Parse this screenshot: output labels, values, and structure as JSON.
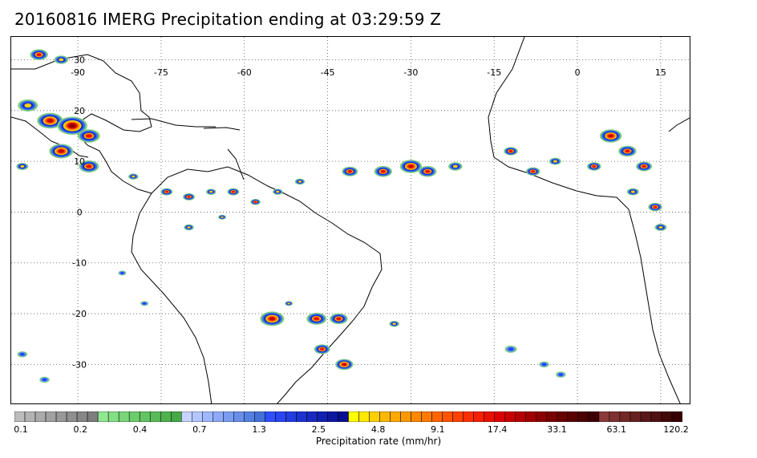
{
  "title": "20160816 IMERG Precipitation ending at 03:29:59 Z",
  "map": {
    "lon_labels": [
      "-90",
      "-75",
      "-60",
      "-45",
      "-30",
      "-15",
      "0",
      "15"
    ],
    "lat_labels": [
      "30",
      "20",
      "10",
      "0",
      "-10",
      "-20",
      "-30"
    ],
    "lon_values": [
      -90,
      -75,
      -60,
      -45,
      -30,
      -15,
      0,
      15
    ],
    "lat_values": [
      30,
      20,
      10,
      0,
      -10,
      -20,
      -30
    ],
    "extent": {
      "lon_min": -102,
      "lon_max": 20.5,
      "lat_min": -38,
      "lat_max": 34.5
    },
    "gridline_style": "dotted"
  },
  "colorbar": {
    "label": "Precipitation rate (mm/hr)",
    "tick_labels": [
      "0.1",
      "0.2",
      "0.4",
      "0.7",
      "1.3",
      "2.5",
      "4.8",
      "9.1",
      "17.4",
      "33.1",
      "63.1",
      "120.2"
    ],
    "colors": [
      "#bdbdbd",
      "#b3b3b3",
      "#aaaaaa",
      "#a1a1a1",
      "#989898",
      "#8f8f8f",
      "#868686",
      "#7e7e7e",
      "#90e890",
      "#84df84",
      "#78d678",
      "#6dcd6d",
      "#62c462",
      "#58bb58",
      "#4eb24e",
      "#45a945",
      "#c6d4ff",
      "#b3c6ff",
      "#a0b8ff",
      "#8daaf8",
      "#7a9cf0",
      "#688ee8",
      "#5680e0",
      "#4472d8",
      "#3050ff",
      "#2a46f0",
      "#243ce0",
      "#1e32d0",
      "#1828c0",
      "#1220b0",
      "#0c18a0",
      "#061090",
      "#ffff00",
      "#ffe800",
      "#ffd000",
      "#ffb800",
      "#ffa800",
      "#ff9800",
      "#ff8800",
      "#ff7800",
      "#ff6600",
      "#ff5400",
      "#ff4200",
      "#ff3000",
      "#f42000",
      "#e81000",
      "#dc0000",
      "#c80000",
      "#b40000",
      "#a00000",
      "#8c0000",
      "#7a0000",
      "#680000",
      "#5a0000",
      "#4c0000",
      "#3e0000",
      "#8b3a3a",
      "#7f3030",
      "#732828",
      "#672020",
      "#5b1818",
      "#4f1010",
      "#430808",
      "#370000"
    ]
  },
  "precip_cells": [
    {
      "lon": -97,
      "lat": 31,
      "intensity": 3,
      "size": 18
    },
    {
      "lon": -93,
      "lat": 30,
      "intensity": 2,
      "size": 14
    },
    {
      "lon": -99,
      "lat": 21,
      "intensity": 2,
      "size": 20
    },
    {
      "lon": -95,
      "lat": 18,
      "intensity": 4,
      "size": 26
    },
    {
      "lon": -91,
      "lat": 17,
      "intensity": 5,
      "size": 30
    },
    {
      "lon": -88,
      "lat": 15,
      "intensity": 3,
      "size": 22
    },
    {
      "lon": -93,
      "lat": 12,
      "intensity": 4,
      "size": 24
    },
    {
      "lon": -88,
      "lat": 9,
      "intensity": 3,
      "size": 20
    },
    {
      "lon": -100,
      "lat": 9,
      "intensity": 2,
      "size": 12
    },
    {
      "lon": -80,
      "lat": 7,
      "intensity": 2,
      "size": 10
    },
    {
      "lon": -74,
      "lat": 4,
      "intensity": 3,
      "size": 12
    },
    {
      "lon": -70,
      "lat": 3,
      "intensity": 3,
      "size": 12
    },
    {
      "lon": -66,
      "lat": 4,
      "intensity": 2,
      "size": 10
    },
    {
      "lon": -62,
      "lat": 4,
      "intensity": 3,
      "size": 12
    },
    {
      "lon": -58,
      "lat": 2,
      "intensity": 3,
      "size": 10
    },
    {
      "lon": -54,
      "lat": 4,
      "intensity": 2,
      "size": 10
    },
    {
      "lon": -50,
      "lat": 6,
      "intensity": 2,
      "size": 10
    },
    {
      "lon": -41,
      "lat": 8,
      "intensity": 3,
      "size": 16
    },
    {
      "lon": -35,
      "lat": 8,
      "intensity": 3,
      "size": 18
    },
    {
      "lon": -30,
      "lat": 9,
      "intensity": 4,
      "size": 22
    },
    {
      "lon": -27,
      "lat": 8,
      "intensity": 3,
      "size": 18
    },
    {
      "lon": -22,
      "lat": 9,
      "intensity": 2,
      "size": 14
    },
    {
      "lon": -12,
      "lat": 12,
      "intensity": 3,
      "size": 14
    },
    {
      "lon": -8,
      "lat": 8,
      "intensity": 3,
      "size": 14
    },
    {
      "lon": -4,
      "lat": 10,
      "intensity": 2,
      "size": 12
    },
    {
      "lon": 3,
      "lat": 9,
      "intensity": 3,
      "size": 14
    },
    {
      "lon": 6,
      "lat": 15,
      "intensity": 4,
      "size": 22
    },
    {
      "lon": 9,
      "lat": 12,
      "intensity": 3,
      "size": 18
    },
    {
      "lon": 12,
      "lat": 9,
      "intensity": 3,
      "size": 16
    },
    {
      "lon": 10,
      "lat": 4,
      "intensity": 2,
      "size": 12
    },
    {
      "lon": 14,
      "lat": 1,
      "intensity": 3,
      "size": 14
    },
    {
      "lon": 15,
      "lat": -3,
      "intensity": 2,
      "size": 12
    },
    {
      "lon": -70,
      "lat": -3,
      "intensity": 2,
      "size": 10
    },
    {
      "lon": -64,
      "lat": -1,
      "intensity": 2,
      "size": 8
    },
    {
      "lon": -52,
      "lat": -18,
      "intensity": 2,
      "size": 8
    },
    {
      "lon": -55,
      "lat": -21,
      "intensity": 4,
      "size": 24
    },
    {
      "lon": -47,
      "lat": -21,
      "intensity": 3,
      "size": 20
    },
    {
      "lon": -43,
      "lat": -21,
      "intensity": 3,
      "size": 18
    },
    {
      "lon": -46,
      "lat": -27,
      "intensity": 3,
      "size": 16
    },
    {
      "lon": -42,
      "lat": -30,
      "intensity": 4,
      "size": 18
    },
    {
      "lon": -33,
      "lat": -22,
      "intensity": 2,
      "size": 10
    },
    {
      "lon": -12,
      "lat": -27,
      "intensity": 1,
      "size": 12
    },
    {
      "lon": -6,
      "lat": -30,
      "intensity": 1,
      "size": 10
    },
    {
      "lon": -3,
      "lat": -32,
      "intensity": 1,
      "size": 10
    },
    {
      "lon": -100,
      "lat": -28,
      "intensity": 1,
      "size": 10
    },
    {
      "lon": -96,
      "lat": -33,
      "intensity": 1,
      "size": 10
    },
    {
      "lon": -82,
      "lat": -12,
      "intensity": 1,
      "size": 8
    },
    {
      "lon": -78,
      "lat": -18,
      "intensity": 1,
      "size": 8
    }
  ]
}
